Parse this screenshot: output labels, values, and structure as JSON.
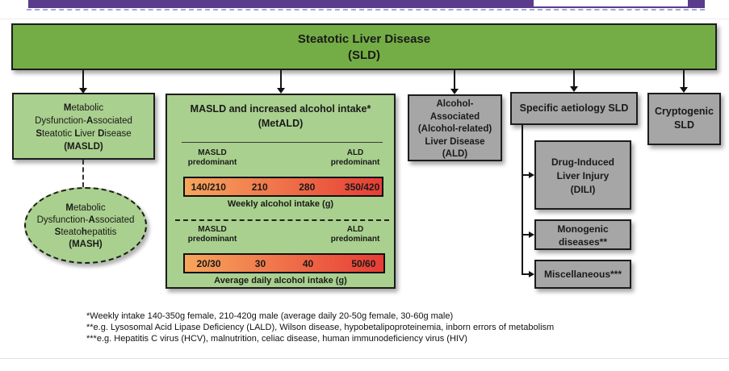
{
  "colors": {
    "purple_bar": "#5a3b8c",
    "dashed_rule": "#9fa8d6",
    "sld_green": "#74ad45",
    "light_green": "#a9d08e",
    "gray": "#a6a6a6",
    "gradient_left": "#f7a55c",
    "gradient_right": "#e73d36"
  },
  "sld": {
    "line1": "Steatotic Liver Disease",
    "line2": "(SLD)"
  },
  "masld": {
    "line1": "**M**etabolic",
    "line2": "Dysfunction-**A**ssociated",
    "line3": "**S**teatotic **L**iver **D**isease",
    "line4": "**(MASLD)**"
  },
  "mash": {
    "line1": "**M**etabolic",
    "line2": "Dysfunction-**A**ssociated",
    "line3": "**S**teato**h**epatitis",
    "line4": "**(MASH)**"
  },
  "metald": {
    "title1": "MASLD and increased alcohol intake*",
    "title2": "(MetALD)",
    "weekly": {
      "left_label_1": "MASLD",
      "left_label_2": "predominant",
      "right_label_1": "ALD",
      "right_label_2": "predominant",
      "values": [
        "140/210",
        "210",
        "280",
        "350/420"
      ],
      "caption": "Weekly alcohol intake (g)"
    },
    "daily": {
      "left_label_1": "MASLD",
      "left_label_2": "predominant",
      "right_label_1": "ALD",
      "right_label_2": "predominant",
      "values": [
        "20/30",
        "30",
        "40",
        "50/60"
      ],
      "caption": "Average daily alcohol intake (g)"
    }
  },
  "ald": {
    "line1": "Alcohol-",
    "line2": "Associated",
    "line3": "(Alcohol-related)",
    "line4": "Liver Disease",
    "line5": "(ALD)"
  },
  "specific": {
    "label": "Specific aetiology SLD"
  },
  "cryptogenic": {
    "line1": "Cryptogenic",
    "line2": "SLD"
  },
  "dili": {
    "line1": "Drug-Induced",
    "line2": "Liver Injury",
    "line3": "(DILI)"
  },
  "monogenic": {
    "line1": "Monogenic",
    "line2": "diseases**"
  },
  "miscellaneous": {
    "label": "Miscellaneous***"
  },
  "footnotes": [
    "*Weekly intake 140-350g female, 210-420g male (average daily 20-50g female, 30-60g male)",
    "**e.g. Lysosomal Acid Lipase Deficiency (LALD), Wilson disease, hypobetalipoproteinemia, inborn errors of metabolism",
    "***e.g. Hepatitis C virus (HCV), malnutrition, celiac disease, human immunodeficiency virus (HIV)"
  ]
}
